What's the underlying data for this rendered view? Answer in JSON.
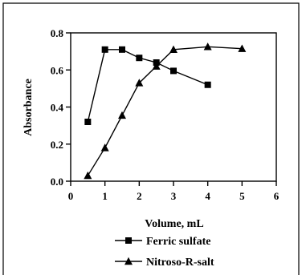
{
  "chart_data": {
    "type": "line",
    "title": "",
    "xlabel": "Volume, mL",
    "ylabel": "Absorbance",
    "xlim": [
      0,
      6
    ],
    "ylim": [
      0.0,
      0.8
    ],
    "x_ticks": [
      0,
      1,
      2,
      3,
      4,
      5,
      6
    ],
    "y_ticks": [
      0.0,
      0.2,
      0.4,
      0.6,
      0.8
    ],
    "x_tick_labels": [
      "0",
      "1",
      "2",
      "3",
      "4",
      "5",
      "6"
    ],
    "y_tick_labels": [
      "0.0",
      "0.2",
      "0.4",
      "0.6",
      "0.8"
    ],
    "grid": false,
    "legend_position": "bottom",
    "series": [
      {
        "name": "Ferric sulfate",
        "marker": "square",
        "color": "#000000",
        "x": [
          0.5,
          1.0,
          1.5,
          2.0,
          2.5,
          3.0,
          4.0
        ],
        "y": [
          0.32,
          0.71,
          0.71,
          0.665,
          0.64,
          0.595,
          0.52
        ]
      },
      {
        "name": "Nitroso-R-salt",
        "marker": "triangle",
        "color": "#000000",
        "x": [
          0.5,
          1.0,
          1.5,
          2.0,
          2.5,
          3.0,
          4.0,
          5.0
        ],
        "y": [
          0.03,
          0.18,
          0.355,
          0.53,
          0.62,
          0.71,
          0.725,
          0.715
        ]
      }
    ]
  }
}
